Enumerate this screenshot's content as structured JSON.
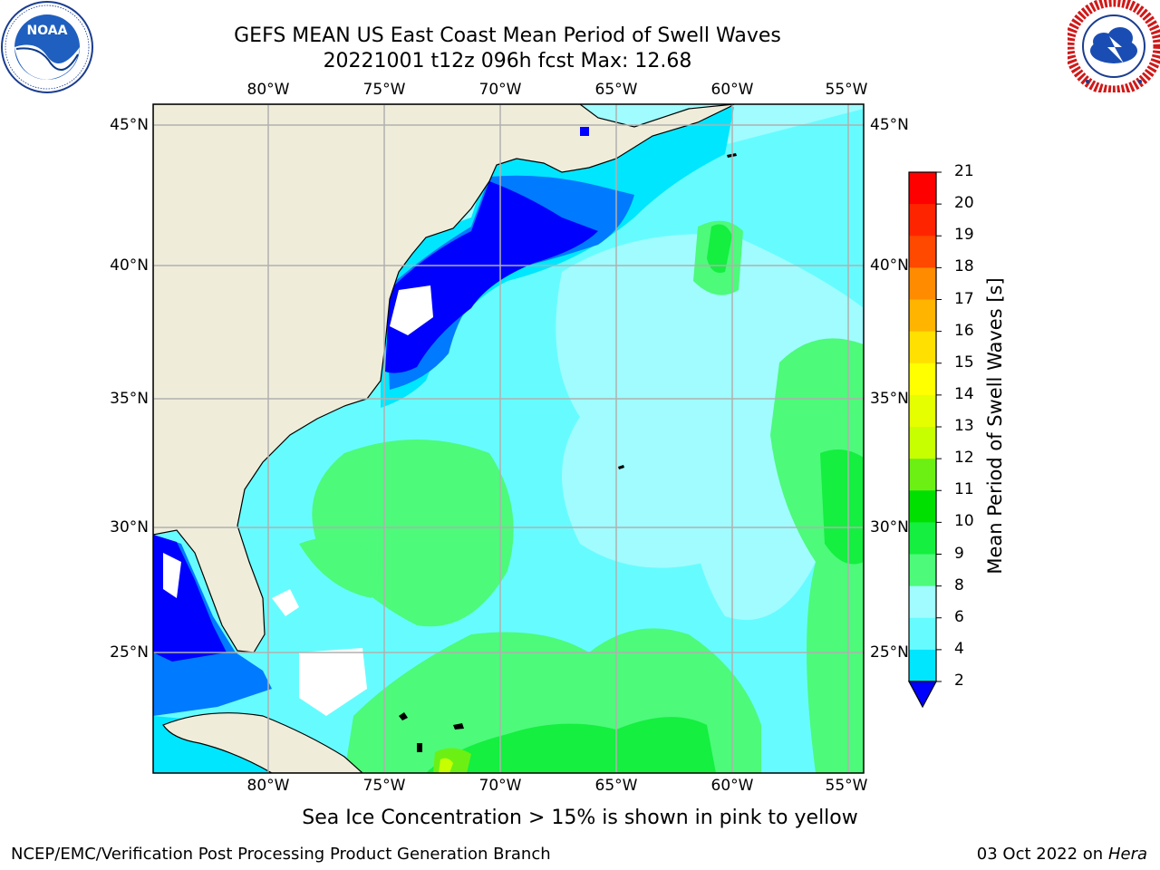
{
  "title": {
    "line1": "GEFS MEAN US East Coast Mean Period of Swell Waves",
    "line2": "20221001 t12z 096h fcst   Max: 12.68"
  },
  "logos": {
    "left": {
      "name": "NOAA",
      "ring_text": "NATIONAL OCEANIC AND ATMOSPHERIC ADMINISTRATION · U.S. DEPARTMENT OF COMMERCE"
    },
    "right": {
      "name": "NATIONAL WEATHER SERVICE"
    }
  },
  "map": {
    "lon_labels": [
      "80°W",
      "75°W",
      "70°W",
      "65°W",
      "60°W",
      "55°W"
    ],
    "lat_labels": [
      "45°N",
      "40°N",
      "35°N",
      "30°N",
      "25°N"
    ],
    "colors": {
      "land": "#efedda",
      "frame": "#000000",
      "grid": "#b0b0b0"
    }
  },
  "colorbar": {
    "title": "Mean Period of Swell Waves [s]",
    "tick_labels": [
      "2",
      "4",
      "6",
      "8",
      "9",
      "10",
      "11",
      "12",
      "13",
      "14",
      "15",
      "16",
      "17",
      "18",
      "19",
      "20",
      "21"
    ],
    "colors": [
      "#0000ff",
      "#007aff",
      "#00e6ff",
      "#66fcff",
      "#a0fcff",
      "#4dfa7a",
      "#14ef40",
      "#00e000",
      "#6cf014",
      "#c8ff00",
      "#e6ff00",
      "#ffff00",
      "#ffe000",
      "#ffb400",
      "#ff8c00",
      "#ff4800",
      "#ff2400",
      "#ff0000"
    ]
  },
  "note": "Sea Ice Concentration > 15% is shown in pink to yellow",
  "footer": {
    "left": "NCEP/EMC/Verification Post Processing Product Generation Branch",
    "right_prefix": "03 Oct 2022 on",
    "right_italic": "Hera"
  }
}
